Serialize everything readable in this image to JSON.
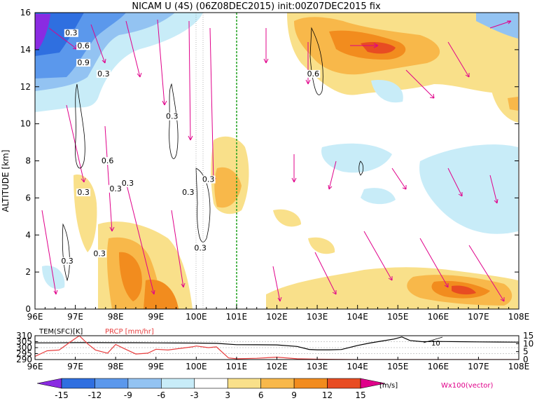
{
  "title": "NICAM U (4S) (06Z08DEC2015) init:00Z07DEC2015 fix",
  "colors": {
    "neg15": "#8a2be2",
    "neg12": "#2f6fe0",
    "neg9": "#5b98ec",
    "neg6": "#93c3f2",
    "neg3": "#c8ecf8",
    "pos3": "#f9e08a",
    "pos6": "#f8b84a",
    "pos9": "#f28c1e",
    "pos12": "#e84c22",
    "pos15": "#b80f1e",
    "vector": "#e0008a",
    "marker": "#1fa01f",
    "prcp": "#e83e3e"
  },
  "chart_data": [
    {
      "type": "heatmap",
      "title": "NICAM U (4S) (06Z08DEC2015) init:00Z07DEC2015 fix",
      "xlabel": "",
      "ylabel": "ALTITUDE [km]",
      "xlim": [
        96,
        108
      ],
      "ylim": [
        0,
        16
      ],
      "x_ticks": [
        "96E",
        "97E",
        "98E",
        "99E",
        "100E",
        "101E",
        "102E",
        "103E",
        "104E",
        "105E",
        "106E",
        "107E",
        "108E"
      ],
      "y_ticks": [
        "0",
        "2",
        "4",
        "6",
        "8",
        "10",
        "12",
        "14",
        "16"
      ],
      "marker_longitude": 100.8,
      "contour_labels": [
        {
          "text": "0.3",
          "x": 96.9,
          "y": 14.8
        },
        {
          "text": "0.6",
          "x": 97.2,
          "y": 14.1
        },
        {
          "text": "0.9",
          "x": 97.2,
          "y": 13.2
        },
        {
          "text": "0.3",
          "x": 97.7,
          "y": 12.6
        },
        {
          "text": "0.3",
          "x": 99.4,
          "y": 10.3
        },
        {
          "text": "0.6",
          "x": 97.8,
          "y": 7.9
        },
        {
          "text": "0.3",
          "x": 98.3,
          "y": 6.7
        },
        {
          "text": "0.3",
          "x": 98.0,
          "y": 6.4
        },
        {
          "text": "0.3",
          "x": 97.2,
          "y": 6.2
        },
        {
          "text": "0.3",
          "x": 99.8,
          "y": 6.2
        },
        {
          "text": "0.3",
          "x": 100.3,
          "y": 6.9
        },
        {
          "text": "0.3",
          "x": 100.1,
          "y": 3.2
        },
        {
          "text": "0.3",
          "x": 97.6,
          "y": 2.9
        },
        {
          "text": "0.3",
          "x": 96.8,
          "y": 2.5
        },
        {
          "text": "0.6",
          "x": 102.9,
          "y": 12.6
        }
      ]
    },
    {
      "type": "line",
      "xlim": [
        96,
        108
      ],
      "left_axis": {
        "label": "TEM(SFC)[K]",
        "ticks": [
          "310",
          "305",
          "300",
          "295",
          "290"
        ],
        "ylim": [
          290,
          310
        ]
      },
      "right_axis": {
        "label": "PRCP [mm/hr]",
        "ticks": [
          "15",
          "10",
          "5",
          "0"
        ],
        "ylim": [
          0,
          15
        ]
      },
      "x_ticks": [
        "96E",
        "97E",
        "98E",
        "99E",
        "100E",
        "101E",
        "102E",
        "103E",
        "104E",
        "105E",
        "106E",
        "107E",
        "108E"
      ],
      "series": [
        {
          "name": "TEM(SFC)[K]",
          "x": [
            96.0,
            96.5,
            97.0,
            97.5,
            98.0,
            98.5,
            99.0,
            99.5,
            100.0,
            100.5,
            101.0,
            101.5,
            102.0,
            102.5,
            102.8,
            103.0,
            103.3,
            103.6,
            104.0,
            104.3,
            104.6,
            104.9,
            105.1,
            105.3,
            105.6,
            106.0,
            106.5,
            107.0,
            107.5,
            108.0
          ],
          "y": [
            304.0,
            304.0,
            304.2,
            304.2,
            304.1,
            304.1,
            304.0,
            303.9,
            303.8,
            303.6,
            302.5,
            302.4,
            302.3,
            301.0,
            298.5,
            298.2,
            298.2,
            298.4,
            301.8,
            303.8,
            305.5,
            307.2,
            309.0,
            306.0,
            305.0,
            305.2,
            305.0,
            304.8,
            304.7,
            304.6
          ]
        },
        {
          "name": "PRCP [mm/hr]",
          "x": [
            96.0,
            96.3,
            96.6,
            96.9,
            97.1,
            97.3,
            97.5,
            97.8,
            98.0,
            98.2,
            98.5,
            98.8,
            99.0,
            99.3,
            99.6,
            99.9,
            100.0,
            100.3,
            100.5,
            100.8,
            101.0,
            101.5,
            102.0,
            102.5,
            103.0,
            104.0,
            105.0,
            106.0,
            107.0,
            108.0
          ],
          "y": [
            2.0,
            5.5,
            6.0,
            11.5,
            15.0,
            10.0,
            6.0,
            4.0,
            9.5,
            7.0,
            3.5,
            4.0,
            6.5,
            6.0,
            7.0,
            8.0,
            8.5,
            7.5,
            8.0,
            1.0,
            0.5,
            0.8,
            1.5,
            0.5,
            0.2,
            0.0,
            0.0,
            0.0,
            0.0,
            0.0
          ]
        }
      ]
    },
    {
      "type": "bar",
      "title": "colorbar",
      "categories": [
        "-15",
        "-12",
        "-9",
        "-6",
        "-3",
        "3",
        "6",
        "9",
        "12",
        "15"
      ],
      "unit_label": "[m/s]",
      "vector_label": "Wx100(vector)"
    }
  ]
}
